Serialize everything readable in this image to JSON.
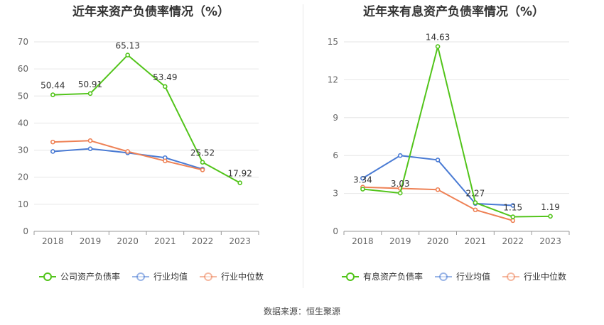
{
  "source": "数据来源：恒生聚源",
  "chart_data": [
    {
      "type": "line",
      "title": "近年来资产负债率情况（%）",
      "categories": [
        "2018",
        "2019",
        "2020",
        "2021",
        "2022",
        "2023"
      ],
      "ylim": [
        0,
        70
      ],
      "yticks": [
        0,
        10,
        20,
        30,
        40,
        50,
        60,
        70
      ],
      "grid": true,
      "legend_position": "bottom",
      "series": [
        {
          "name": "公司资产负债率",
          "color": "#52c41a",
          "values": [
            50.44,
            50.91,
            65.13,
            53.49,
            25.52,
            17.92
          ],
          "labels": [
            "50.44",
            "50.91",
            "65.13",
            "53.49",
            "25.52",
            "17.92"
          ]
        },
        {
          "name": "行业均值",
          "color": "#4a7bd4",
          "values": [
            29.5,
            30.5,
            29.0,
            27.2,
            23.0,
            null
          ]
        },
        {
          "name": "行业中位数",
          "color": "#ee8155",
          "values": [
            33.0,
            33.5,
            29.5,
            26.0,
            22.7,
            null
          ]
        }
      ]
    },
    {
      "type": "line",
      "title": "近年来有息资产负债率情况（%）",
      "categories": [
        "2018",
        "2019",
        "2020",
        "2021",
        "2022",
        "2023"
      ],
      "ylim": [
        0,
        15
      ],
      "yticks": [
        0,
        3,
        6,
        9,
        12,
        15
      ],
      "grid": true,
      "legend_position": "bottom",
      "series": [
        {
          "name": "有息资产负债率",
          "color": "#52c41a",
          "values": [
            3.34,
            3.03,
            14.63,
            2.27,
            1.15,
            1.19
          ],
          "labels": [
            "3.34",
            "3.03",
            "14.63",
            "2.27",
            "1.15",
            "1.19"
          ]
        },
        {
          "name": "行业均值",
          "color": "#4a7bd4",
          "values": [
            4.2,
            6.0,
            5.65,
            2.2,
            2.05,
            null
          ]
        },
        {
          "name": "行业中位数",
          "color": "#ee8155",
          "values": [
            3.5,
            3.4,
            3.3,
            1.7,
            0.85,
            null
          ]
        }
      ]
    }
  ]
}
